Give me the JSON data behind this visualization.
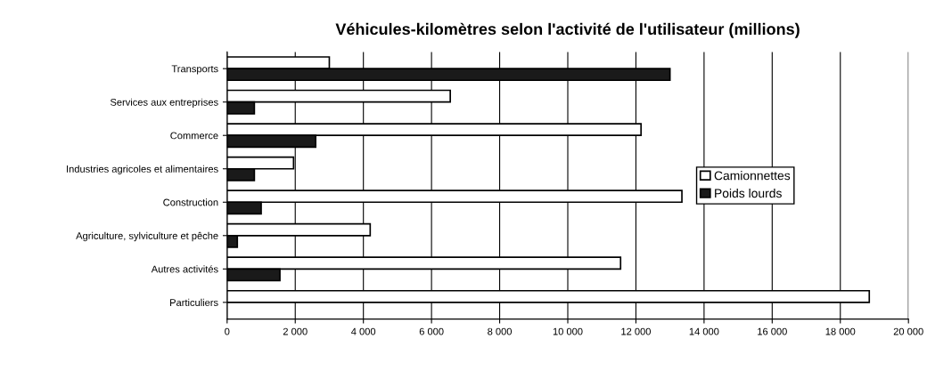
{
  "chart_data": {
    "type": "bar",
    "orientation": "horizontal",
    "title": "Véhicules-kilomètres selon l'activité de l'utilisateur (millions)",
    "categories": [
      "Transports",
      "Services aux entreprises",
      "Commerce",
      "Industries agricoles et alimentaires",
      "Construction",
      "Agriculture, sylviculture et pêche",
      "Autres activités",
      "Particuliers"
    ],
    "series": [
      {
        "name": "Camionnettes",
        "color": "#ffffff",
        "values": [
          3000,
          6550,
          12150,
          1950,
          13350,
          4200,
          11550,
          18850
        ]
      },
      {
        "name": "Poids lourds",
        "color": "#1a1a1a",
        "values": [
          13000,
          800,
          2600,
          800,
          1000,
          300,
          1550,
          null
        ]
      }
    ],
    "xlim": [
      0,
      20000
    ],
    "xticks": [
      0,
      {
        "value": 2000,
        "label": "2 000"
      },
      {
        "value": 4000,
        "label": "4 000"
      },
      {
        "value": 6000,
        "label": "6 000"
      },
      {
        "value": 8000,
        "label": "8 000"
      },
      {
        "value": 10000,
        "label": "10 000"
      },
      {
        "value": 12000,
        "label": "12 000"
      },
      {
        "value": 14000,
        "label": "14 000"
      },
      {
        "value": 16000,
        "label": "16 000"
      },
      {
        "value": 18000,
        "label": "18 000"
      },
      {
        "value": 20000,
        "label": "20 000"
      }
    ],
    "grid": "x",
    "legend": "right"
  }
}
